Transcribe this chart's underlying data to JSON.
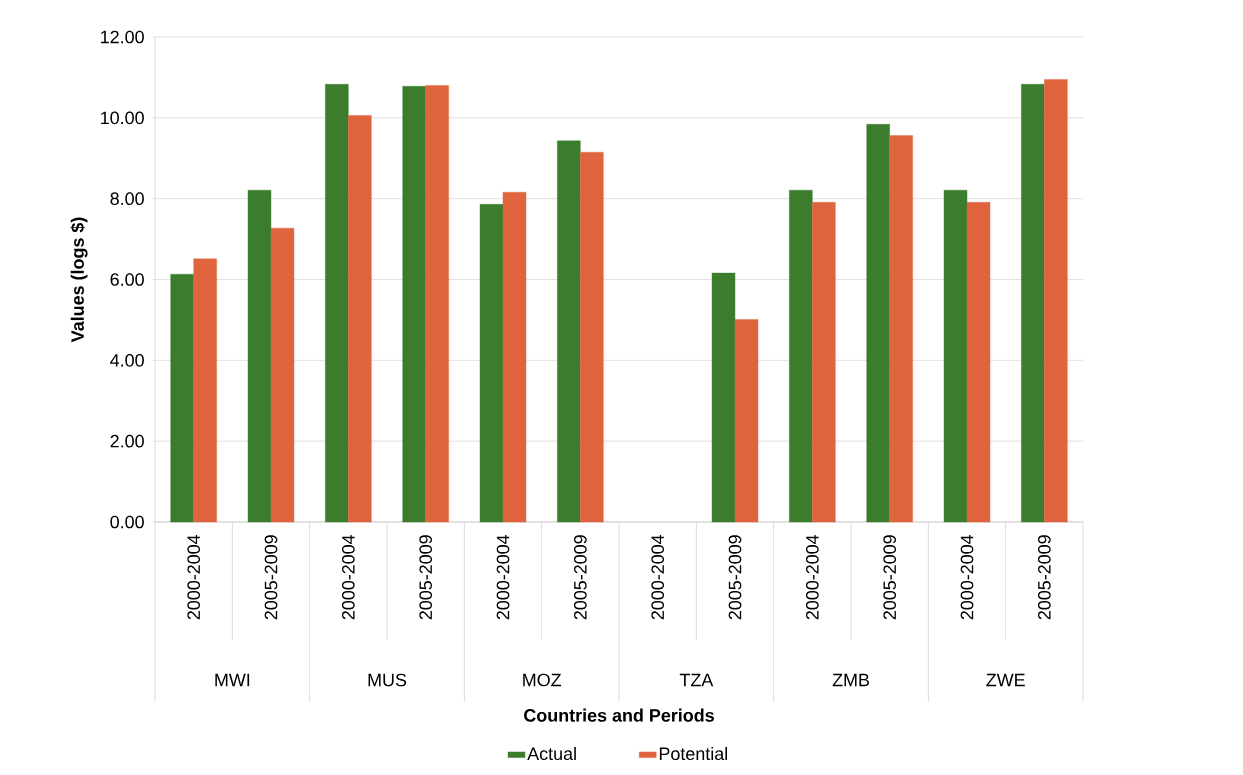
{
  "chart_data": {
    "type": "bar",
    "xlabel": "Countries and Periods",
    "ylabel": "Values (logs $)",
    "categories": [
      "2000-2004",
      "2005-2009",
      "2000-2004",
      "2005-2009",
      "2000-2004",
      "2005-2009",
      "2000-2004",
      "2005-2009",
      "2000-2004",
      "2005-2009",
      "2000-2004",
      "2005-2009"
    ],
    "annotations": [
      "MWI",
      "MUS",
      "MOZ",
      "TZA",
      "ZMB",
      "ZWE"
    ],
    "series": [
      {
        "name": "Actual",
        "color": "#3b7d2c",
        "values": [
          6.13,
          8.21,
          10.83,
          10.78,
          7.86,
          9.43,
          null,
          6.16,
          8.21,
          9.84,
          8.21,
          10.83
        ]
      },
      {
        "name": "Potential",
        "color": "#e0653f",
        "values": [
          6.51,
          7.27,
          10.06,
          10.8,
          8.16,
          9.15,
          null,
          5.01,
          7.91,
          9.56,
          7.91,
          10.95
        ]
      }
    ],
    "ylim": [
      0,
      12
    ],
    "yticks": [
      {
        "value": 0,
        "label": "0.00"
      },
      {
        "value": 2,
        "label": "2.00"
      },
      {
        "value": 4,
        "label": "4.00"
      },
      {
        "value": 6,
        "label": "6.00"
      },
      {
        "value": 8,
        "label": "8.00"
      },
      {
        "value": 10,
        "label": "10.00"
      },
      {
        "value": 12,
        "label": "12.00"
      }
    ],
    "grid": "y",
    "legend": "bottom"
  }
}
